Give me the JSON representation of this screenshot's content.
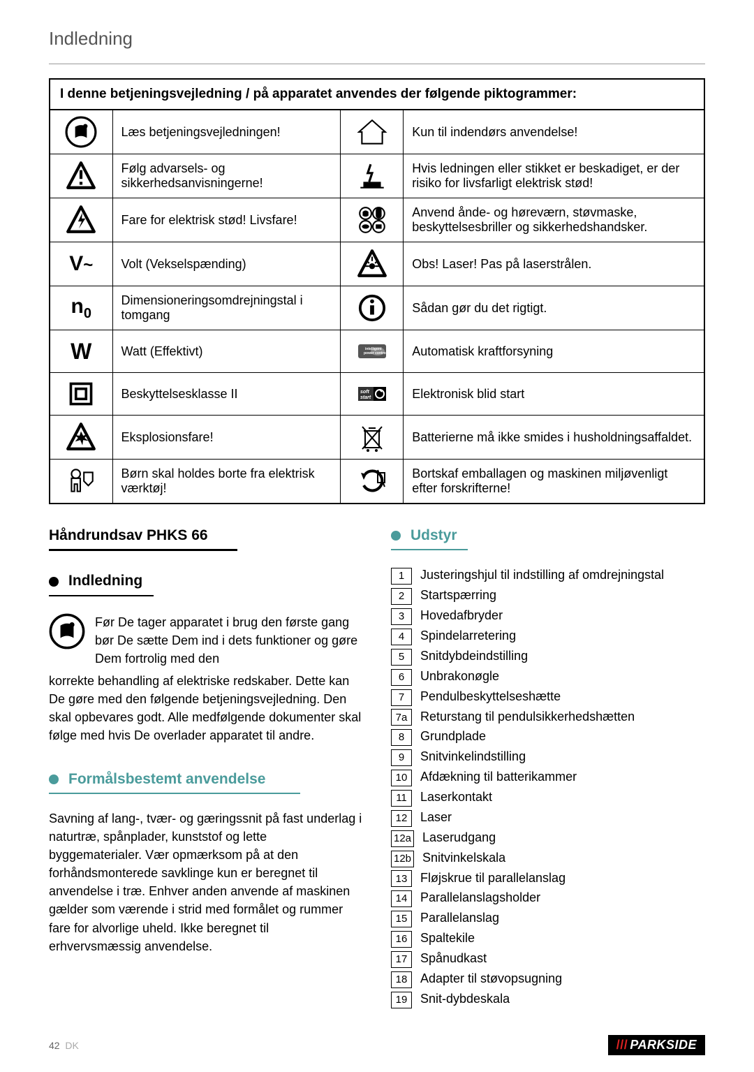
{
  "running_head": "Indledning",
  "table": {
    "header": "I denne betjeningsvejledning / på apparatet anvendes der følgende piktogrammer:",
    "rows": [
      {
        "left_sym": "manual",
        "left_text": "Læs betjeningsvejledningen!",
        "right_sym": "house",
        "right_text": "Kun til indendørs anvendelse!"
      },
      {
        "left_sym": "warn",
        "left_text": "Følg advarsels- og sikkerhedsanvisningerne!",
        "right_sym": "cord",
        "right_text": "Hvis ledningen eller stikket er beskadiget, er der risiko for livsfarligt elektrisk stød!"
      },
      {
        "left_sym": "shock",
        "left_text": "Fare for elektrisk stød! Livsfare!",
        "right_sym": "ppe",
        "right_text": "Anvend ånde- og høreværn, støvmaske, beskyttelsesbriller og sikkerhedshandsker."
      },
      {
        "left_sym": "vac",
        "left_text": "Volt (Vekselspænding)",
        "right_sym": "laser",
        "right_text": "Obs! Laser! Pas på laserstrålen."
      },
      {
        "left_sym": "n0",
        "left_text": "Dimensioneringsomdrejningstal i tomgang",
        "right_sym": "info",
        "right_text": "Sådan gør du det rigtigt."
      },
      {
        "left_sym": "watt",
        "left_text": "Watt (Effektivt)",
        "right_sym": "ipc",
        "right_text": "Automatisk kraftforsyning"
      },
      {
        "left_sym": "class2",
        "left_text": "Beskyttelsesklasse II",
        "right_sym": "softstart",
        "right_text": "Elektronisk blid start"
      },
      {
        "left_sym": "explode",
        "left_text": "Eksplosionsfare!",
        "right_sym": "nobin",
        "right_text": "Batterierne må ikke smides i husholdningsaffaldet."
      },
      {
        "left_sym": "kids",
        "left_text": "Børn skal holdes borte fra elektrisk værktøj!",
        "right_sym": "recycle",
        "right_text": "Bortskaf emballagen og maskinen miljøvenligt efter forskrifterne!"
      }
    ]
  },
  "product_title": "Håndrundsav PHKS 66",
  "intro": {
    "heading": "Indledning",
    "text_lead": "Før De tager apparatet i brug den første gang bør De sætte Dem ind i dets funktioner og gøre Dem fortrolig med den",
    "text_rest": "korrekte behandling af elektriske redskaber. Dette kan De gøre med den følgende betjeningsvejledning. Den skal opbevares godt. Alle medfølgende dokumenter skal følge med hvis De overlader apparatet til andre."
  },
  "purpose": {
    "heading": "Formålsbestemt anvendelse",
    "text": "Savning af lang-, tvær- og gæringssnit på fast underlag i naturtræ, spånplader, kunststof og lette byggematerialer. Vær opmærksom på at den forhåndsmonterede savklinge kun er beregnet til anvendelse i træ. Enhver anden anvende af maskinen gælder som værende i strid med formålet og rummer fare for alvorlige uheld. Ikke beregnet til erhvervsmæssig anvendelse."
  },
  "parts": {
    "heading": "Udstyr",
    "items": [
      {
        "n": "1",
        "t": "Justeringshjul til indstilling af omdrejningstal"
      },
      {
        "n": "2",
        "t": "Startspærring"
      },
      {
        "n": "3",
        "t": "Hovedafbryder"
      },
      {
        "n": "4",
        "t": "Spindelarretering"
      },
      {
        "n": "5",
        "t": "Snitdybdeindstilling"
      },
      {
        "n": "6",
        "t": "Unbrakonøgle"
      },
      {
        "n": "7",
        "t": "Pendulbeskyttelseshætte"
      },
      {
        "n": "7a",
        "t": "Returstang til pendulsikkerhedshætten"
      },
      {
        "n": "8",
        "t": "Grundplade"
      },
      {
        "n": "9",
        "t": "Snitvinkelindstilling"
      },
      {
        "n": "10",
        "t": "Afdækning til batterikammer"
      },
      {
        "n": "11",
        "t": "Laserkontakt"
      },
      {
        "n": "12",
        "t": "Laser"
      },
      {
        "n": "12a",
        "t": "Laserudgang"
      },
      {
        "n": "12b",
        "t": "Snitvinkelskala"
      },
      {
        "n": "13",
        "t": "Fløjskrue til parallelanslag"
      },
      {
        "n": "14",
        "t": "Parallelanslagsholder"
      },
      {
        "n": "15",
        "t": "Parallelanslag"
      },
      {
        "n": "16",
        "t": "Spaltekile"
      },
      {
        "n": "17",
        "t": "Spånudkast"
      },
      {
        "n": "18",
        "t": "Adapter til støvopsugning"
      },
      {
        "n": "19",
        "t": "Snit-dybdeskala"
      }
    ]
  },
  "footer": {
    "page": "42",
    "lang": "DK",
    "brand": "PARKSIDE"
  }
}
